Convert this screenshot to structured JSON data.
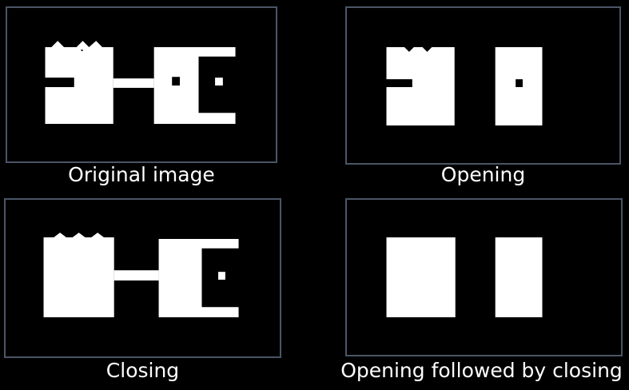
{
  "colors": {
    "background": "#000000",
    "panel_border": "#4a5566",
    "shape": "#ffffff",
    "text": "#ffffff"
  },
  "panels": [
    {
      "caption": "Original image"
    },
    {
      "caption": "Opening"
    },
    {
      "caption": "Closing"
    },
    {
      "caption": "Opening followed by closing"
    }
  ]
}
